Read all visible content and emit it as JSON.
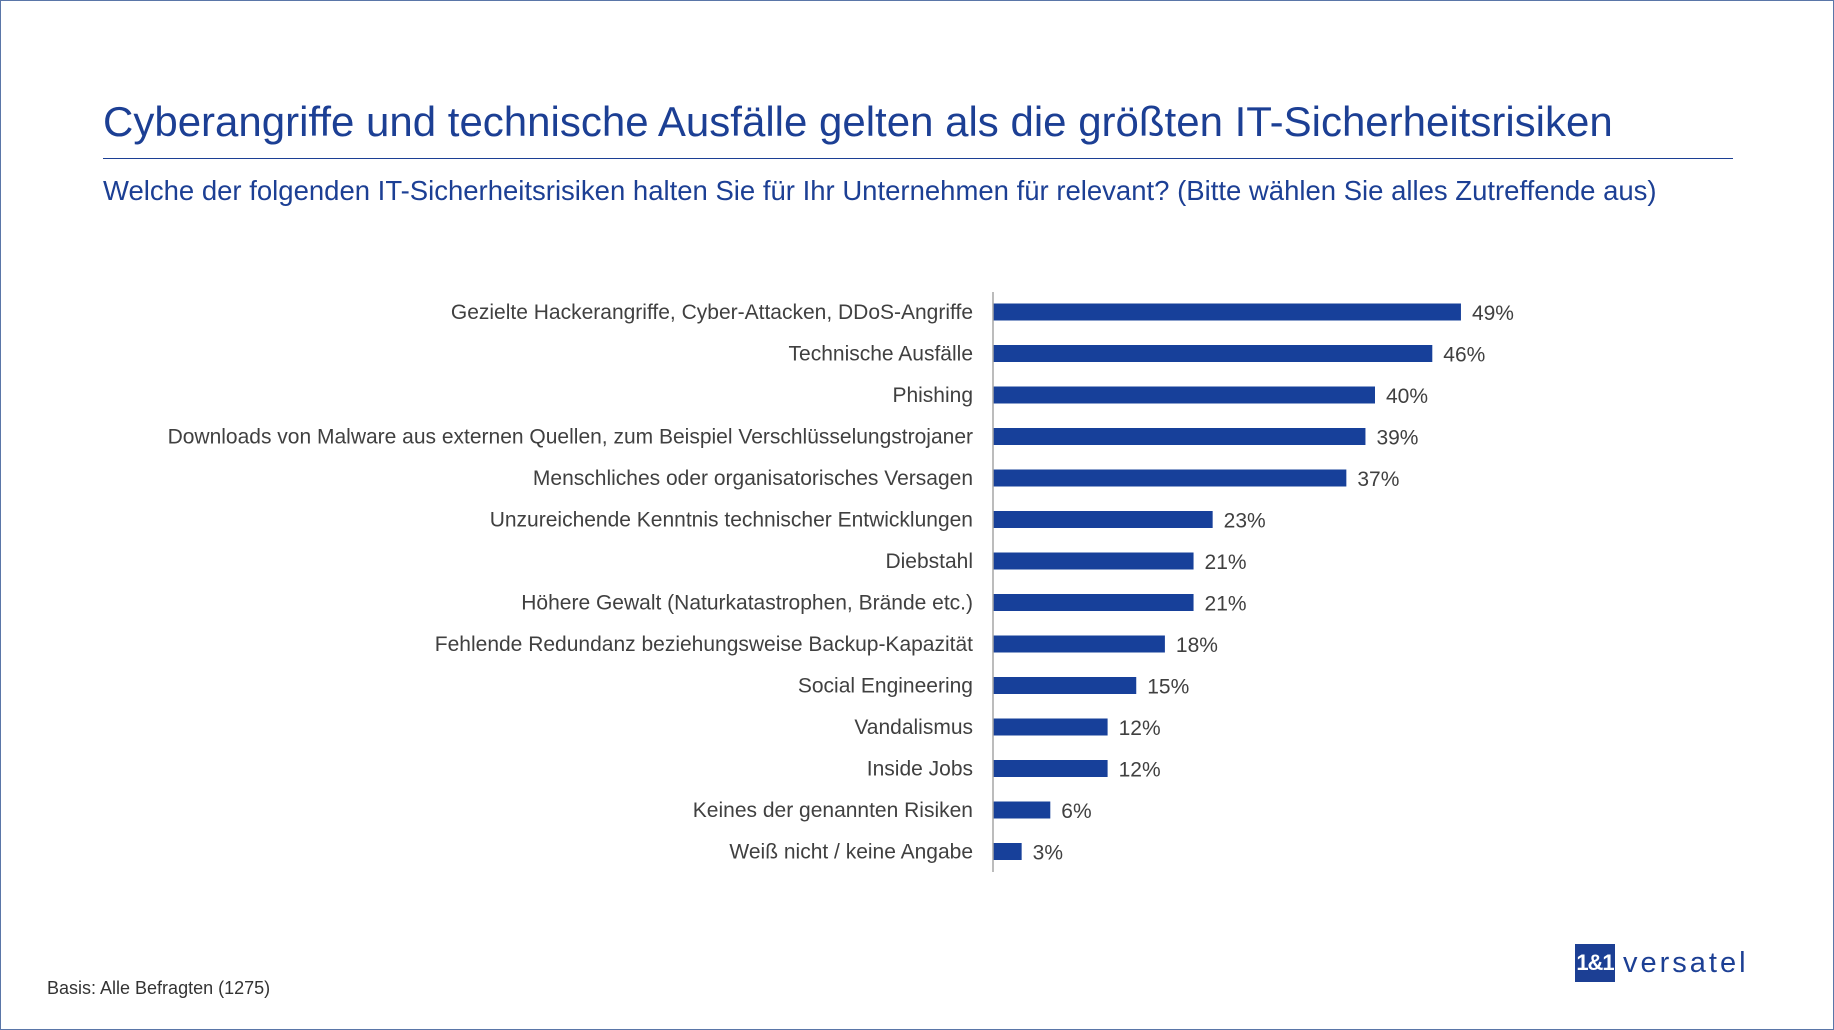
{
  "title": "Cyberangriffe und technische Ausfälle gelten als die größten IT-Sicherheitsrisiken",
  "subtitle": "Welche der folgenden IT-Sicherheitsrisiken halten Sie für Ihr Unternehmen für relevant? (Bitte wählen Sie alles Zutreffende aus)",
  "footnote": "Basis: Alle Befragten (1275)",
  "logo": {
    "mark": "1&1",
    "word": "versatel"
  },
  "colors": {
    "bar": "#17409a",
    "text": "#1c3f94"
  },
  "chart_data": {
    "type": "bar",
    "orientation": "horizontal",
    "categories": [
      "Gezielte Hackerangriffe, Cyber-Attacken, DDoS-Angriffe",
      "Technische Ausfälle",
      "Phishing",
      "Downloads von Malware aus externen Quellen, zum Beispiel Verschlüsselungstrojaner",
      "Menschliches oder organisatorisches Versagen",
      "Unzureichende Kenntnis technischer Entwicklungen",
      "Diebstahl",
      "Höhere Gewalt (Naturkatastrophen, Brände etc.)",
      "Fehlende Redundanz beziehungsweise Backup-Kapazität",
      "Social Engineering",
      "Vandalismus",
      "Inside Jobs",
      "Keines der genannten Risiken",
      "Weiß nicht / keine Angabe"
    ],
    "values": [
      49,
      46,
      40,
      39,
      37,
      23,
      21,
      21,
      18,
      15,
      12,
      12,
      6,
      3
    ],
    "data_labels": [
      "49%",
      "46%",
      "40%",
      "39%",
      "37%",
      "23%",
      "21%",
      "21%",
      "18%",
      "15%",
      "12%",
      "12%",
      "6%",
      "3%"
    ],
    "unit": "%",
    "grid": false
  }
}
